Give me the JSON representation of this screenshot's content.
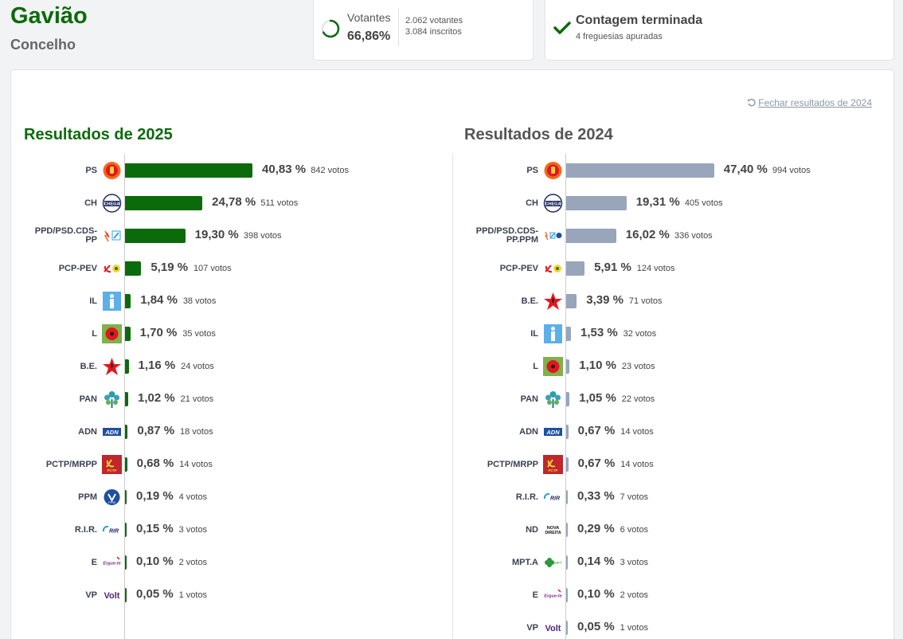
{
  "header": {
    "title": "Gavião",
    "subtitle": "Concelho"
  },
  "votantes": {
    "label": "Votantes",
    "percent": "66,86%",
    "percent_value": 66.86,
    "voters": "2.062 votantes",
    "registered": "3.084 inscritos"
  },
  "contagem": {
    "title": "Contagem terminada",
    "subtitle": "4 freguesias apuradas"
  },
  "close_link": "Fechar resultados de 2024",
  "results_2025": {
    "title": "Resultados de 2025",
    "rows": [
      {
        "party": "PS",
        "pct": "40,83 %",
        "value": 40.83,
        "votes": "842 votos",
        "logo": "ps-fist-rose"
      },
      {
        "party": "CH",
        "pct": "24,78 %",
        "value": 24.78,
        "votes": "511 votos",
        "logo": "chega"
      },
      {
        "party": "PPD/PSD.CDS-PP",
        "pct": "19,30 %",
        "value": 19.3,
        "votes": "398 votos",
        "logo": "psd-cds"
      },
      {
        "party": "PCP-PEV",
        "pct": "5,19 %",
        "value": 5.19,
        "votes": "107 votos",
        "logo": "cdu"
      },
      {
        "party": "IL",
        "pct": "1,84 %",
        "value": 1.84,
        "votes": "38 votos",
        "logo": "il"
      },
      {
        "party": "L",
        "pct": "1,70 %",
        "value": 1.7,
        "votes": "35 votos",
        "logo": "livre-poppy"
      },
      {
        "party": "B.E.",
        "pct": "1,16 %",
        "value": 1.16,
        "votes": "24 votos",
        "logo": "be-star"
      },
      {
        "party": "PAN",
        "pct": "1,02 %",
        "value": 1.02,
        "votes": "21 votos",
        "logo": "pan-tree"
      },
      {
        "party": "ADN",
        "pct": "0,87 %",
        "value": 0.87,
        "votes": "18 votos",
        "logo": "adn"
      },
      {
        "party": "PCTP/MRPP",
        "pct": "0,68 %",
        "value": 0.68,
        "votes": "14 votos",
        "logo": "pctp"
      },
      {
        "party": "PPM",
        "pct": "0,19 %",
        "value": 0.19,
        "votes": "4 votos",
        "logo": "ppm"
      },
      {
        "party": "R.I.R.",
        "pct": "0,15 %",
        "value": 0.15,
        "votes": "3 votos",
        "logo": "rir"
      },
      {
        "party": "E",
        "pct": "0,10 %",
        "value": 0.1,
        "votes": "2 votos",
        "logo": "ergue-te"
      },
      {
        "party": "VP",
        "pct": "0,05 %",
        "value": 0.05,
        "votes": "1 votos",
        "logo": "volt"
      }
    ]
  },
  "results_2024": {
    "title": "Resultados de 2024",
    "rows": [
      {
        "party": "PS",
        "pct": "47,40 %",
        "value": 47.4,
        "votes": "994 votos",
        "logo": "ps-fist-rose"
      },
      {
        "party": "CH",
        "pct": "19,31 %",
        "value": 19.31,
        "votes": "405 votos",
        "logo": "chega"
      },
      {
        "party": "PPD/PSD.CDS-PP.PPM",
        "pct": "16,02 %",
        "value": 16.02,
        "votes": "336 votos",
        "logo": "ad"
      },
      {
        "party": "PCP-PEV",
        "pct": "5,91 %",
        "value": 5.91,
        "votes": "124 votos",
        "logo": "cdu"
      },
      {
        "party": "B.E.",
        "pct": "3,39 %",
        "value": 3.39,
        "votes": "71 votos",
        "logo": "be-star"
      },
      {
        "party": "IL",
        "pct": "1,53 %",
        "value": 1.53,
        "votes": "32 votos",
        "logo": "il"
      },
      {
        "party": "L",
        "pct": "1,10 %",
        "value": 1.1,
        "votes": "23 votos",
        "logo": "livre-poppy"
      },
      {
        "party": "PAN",
        "pct": "1,05 %",
        "value": 1.05,
        "votes": "22 votos",
        "logo": "pan-tree"
      },
      {
        "party": "ADN",
        "pct": "0,67 %",
        "value": 0.67,
        "votes": "14 votos",
        "logo": "adn"
      },
      {
        "party": "PCTP/MRPP",
        "pct": "0,67 %",
        "value": 0.67,
        "votes": "14 votos",
        "logo": "pctp"
      },
      {
        "party": "R.I.R.",
        "pct": "0,33 %",
        "value": 0.33,
        "votes": "7 votos",
        "logo": "rir"
      },
      {
        "party": "ND",
        "pct": "0,29 %",
        "value": 0.29,
        "votes": "6 votos",
        "logo": "nova-direita"
      },
      {
        "party": "MPT.A",
        "pct": "0,14 %",
        "value": 0.14,
        "votes": "3 votos",
        "logo": "mpt"
      },
      {
        "party": "E",
        "pct": "0,10 %",
        "value": 0.1,
        "votes": "2 votos",
        "logo": "ergue-te"
      },
      {
        "party": "VP",
        "pct": "0,05 %",
        "value": 0.05,
        "votes": "1 votos",
        "logo": "volt"
      }
    ]
  },
  "colors": {
    "brand_green": "#0b6b0b",
    "bar_2025": "#0b6b0b",
    "bar_2024": "#98a5bb"
  },
  "logo_text": {
    "chega": "CHEGA",
    "adn": "ADN",
    "ppm": "PPM",
    "rir": "RIR",
    "ergue-te": "Ergue-te",
    "volt": "Volt",
    "nova-direita": "NOVA DIREITA",
    "pctp": "PCTP",
    "mpt": "MPT"
  }
}
